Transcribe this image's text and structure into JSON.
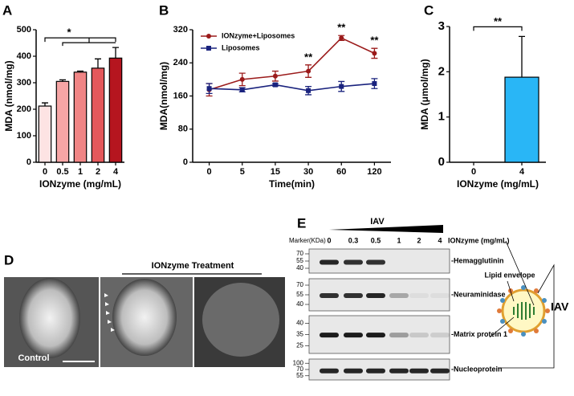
{
  "chart_data": [
    {
      "type": "bar",
      "panel": "A",
      "categories": [
        "0",
        "0.5",
        "1",
        "2",
        "4"
      ],
      "values": [
        212,
        305,
        340,
        355,
        393
      ],
      "errors": [
        12,
        6,
        4,
        35,
        40
      ],
      "colors": [
        "#fde3e3",
        "#f6a5a5",
        "#f08585",
        "#e4585b",
        "#b5151f"
      ],
      "ylim": [
        0,
        500
      ],
      "yticks": [
        0,
        100,
        200,
        300,
        400,
        500
      ],
      "ylabel": "MDA (nmol/mg)",
      "xlabel": "IONzyme (mg/mL)",
      "significance": "*"
    },
    {
      "type": "line",
      "panel": "B",
      "categories": [
        "0",
        "5",
        "15",
        "30",
        "60",
        "120"
      ],
      "series": [
        {
          "name": "IONzyme+Liposomes",
          "color": "#9b1b1b",
          "values": [
            175,
            200,
            208,
            220,
            300,
            263
          ],
          "errors": [
            15,
            15,
            12,
            15,
            6,
            12
          ]
        },
        {
          "name": "Liposomes",
          "color": "#1a237e",
          "values": [
            178,
            175,
            187,
            173,
            183,
            190
          ],
          "errors": [
            12,
            5,
            3,
            10,
            12,
            12
          ]
        }
      ],
      "ylim": [
        0,
        320
      ],
      "yticks": [
        0,
        80,
        160,
        240,
        320
      ],
      "ylabel": "MDA(nmol/mg)",
      "xlabel": "Time(min)",
      "annotations": [
        {
          "category": "30",
          "text": "**"
        },
        {
          "category": "60",
          "text": "**"
        },
        {
          "category": "120",
          "text": "**"
        }
      ]
    },
    {
      "type": "bar",
      "panel": "C",
      "categories": [
        "0",
        "4"
      ],
      "values": [
        0,
        1.88
      ],
      "errors": [
        0,
        0.9
      ],
      "colors": [
        "#29b6f6",
        "#29b6f6"
      ],
      "ylim": [
        0,
        3
      ],
      "yticks": [
        0,
        1,
        2,
        3
      ],
      "ylabel": "MDA (μmol/mg)",
      "xlabel": "IONzyme (mg/mL)",
      "significance": "**"
    }
  ],
  "panel_d": {
    "label": "D",
    "treatment": "IONzyme Treatment",
    "control": "Control"
  },
  "panel_e": {
    "label": "E",
    "virus": "IAV",
    "marker_title": "Marker(KDa)",
    "lanes": [
      "0",
      "0.3",
      "0.5",
      "1",
      "2",
      "4"
    ],
    "lane_unit": "IONzyme (mg/mL)",
    "blots": [
      {
        "name": "-Hemagglutinin",
        "markers": [
          "70",
          "55",
          "40"
        ]
      },
      {
        "name": "-Neuraminidase",
        "markers": [
          "70",
          "55",
          "40"
        ]
      },
      {
        "name": "-Matrix protein 1",
        "markers": [
          "40",
          "35",
          "25"
        ]
      },
      {
        "name": "-Nucleoprotein",
        "markers": [
          "100",
          "70",
          "55"
        ]
      }
    ],
    "envelope": "Lipid envelope",
    "diagram_label": "IAV"
  }
}
